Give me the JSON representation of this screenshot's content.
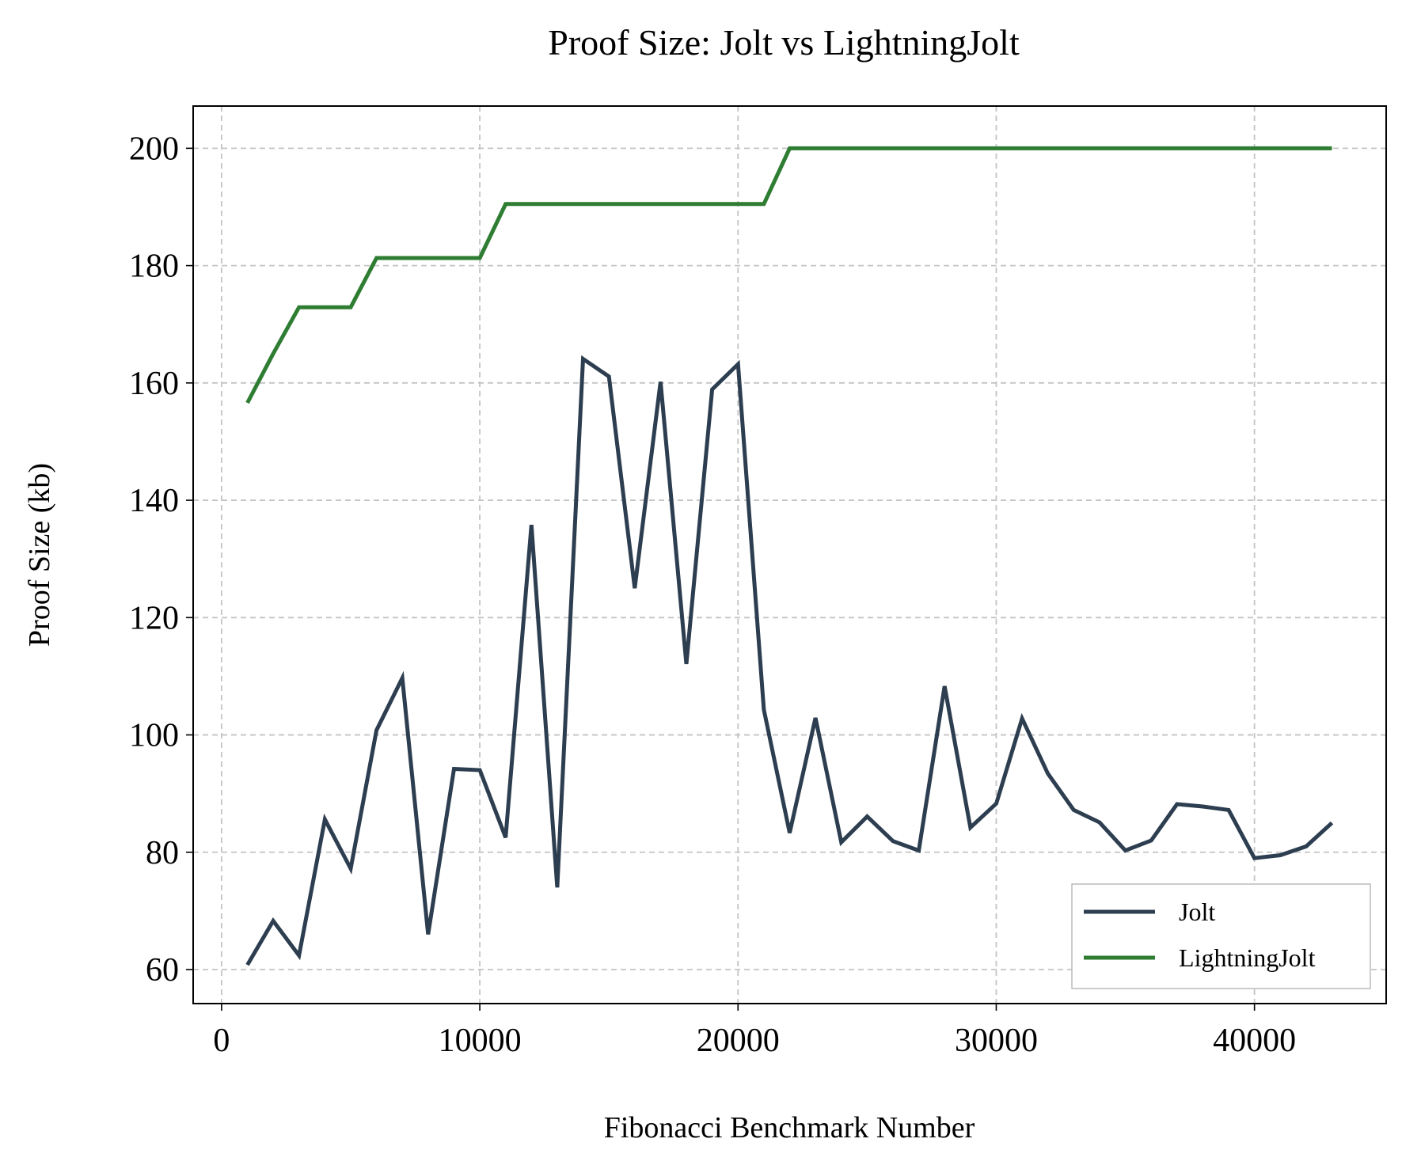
{
  "chart_data": {
    "type": "line",
    "title": "Proof Size: Jolt vs LightningJolt",
    "xlabel": "Fibonacci Benchmark Number",
    "ylabel": "Proof Size (kb)",
    "xlim": [
      -1100,
      45100
    ],
    "ylim": [
      54.2,
      207.2
    ],
    "xticks": [
      0,
      10000,
      20000,
      30000,
      40000
    ],
    "yticks": [
      60,
      80,
      100,
      120,
      140,
      160,
      180,
      200
    ],
    "grid": true,
    "legend_position": "lower-right",
    "x": [
      1000,
      2000,
      3000,
      4000,
      5000,
      6000,
      7000,
      8000,
      9000,
      10000,
      11000,
      12000,
      13000,
      14000,
      15000,
      16000,
      17000,
      18000,
      19000,
      20000,
      21000,
      22000,
      23000,
      24000,
      25000,
      26000,
      27000,
      28000,
      29000,
      30000,
      31000,
      32000,
      33000,
      34000,
      35000,
      36000,
      37000,
      38000,
      39000,
      40000,
      41000,
      42000,
      43000
    ],
    "series": [
      {
        "name": "Jolt",
        "color": "#2d3e50",
        "values": [
          60.8,
          68.3,
          62.4,
          85.6,
          77.2,
          100.8,
          109.7,
          66.0,
          94.2,
          94.0,
          82.5,
          135.8,
          74.0,
          164.1,
          161.1,
          125.0,
          160.2,
          112.1,
          158.9,
          163.2,
          104.3,
          83.3,
          102.9,
          81.7,
          86.1,
          81.9,
          80.3,
          108.3,
          84.2,
          88.3,
          102.8,
          93.4,
          87.2,
          85.1,
          80.3,
          82.0,
          88.2,
          87.8,
          87.2,
          79.0,
          79.5,
          81.0,
          85.0
        ]
      },
      {
        "name": "LightningJolt",
        "color": "#2e7d32",
        "values": [
          156.6,
          165.0,
          172.9,
          172.9,
          172.9,
          181.3,
          181.3,
          181.3,
          181.3,
          181.3,
          190.5,
          190.5,
          190.5,
          190.5,
          190.5,
          190.5,
          190.5,
          190.5,
          190.5,
          190.5,
          190.5,
          200.0,
          200.0,
          200.0,
          200.0,
          200.0,
          200.0,
          200.0,
          200.0,
          200.0,
          200.0,
          200.0,
          200.0,
          200.0,
          200.0,
          200.0,
          200.0,
          200.0,
          200.0,
          200.0,
          200.0,
          200.0,
          200.0
        ]
      }
    ]
  }
}
